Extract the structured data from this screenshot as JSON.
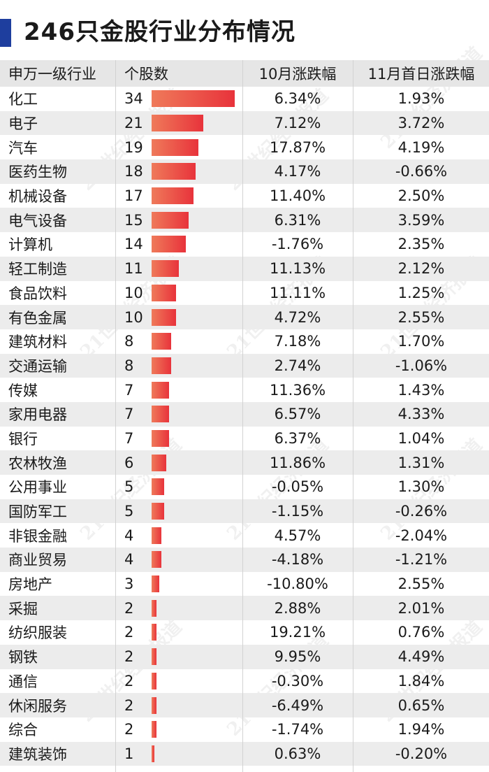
{
  "title": "246只金股行业分布情况",
  "watermark": "21世纪经济报道",
  "colors": {
    "accent": "#1e3e9e",
    "bar_start": "#ef7a5a",
    "bar_end": "#e8333b"
  },
  "chart_data": {
    "type": "table",
    "title": "246只金股行业分布情况",
    "columns": [
      "申万一级行业",
      "个股数",
      "10月涨跌幅",
      "11月首日涨跌幅"
    ],
    "rows": [
      {
        "industry": "化工",
        "count": 34,
        "oct": "6.34%",
        "nov": "1.93%"
      },
      {
        "industry": "电子",
        "count": 21,
        "oct": "7.12%",
        "nov": "3.72%"
      },
      {
        "industry": "汽车",
        "count": 19,
        "oct": "17.87%",
        "nov": "4.19%"
      },
      {
        "industry": "医药生物",
        "count": 18,
        "oct": "4.17%",
        "nov": "-0.66%"
      },
      {
        "industry": "机械设备",
        "count": 17,
        "oct": "11.40%",
        "nov": "2.50%"
      },
      {
        "industry": "电气设备",
        "count": 15,
        "oct": "6.31%",
        "nov": "3.59%"
      },
      {
        "industry": "计算机",
        "count": 14,
        "oct": "-1.76%",
        "nov": "2.35%"
      },
      {
        "industry": "轻工制造",
        "count": 11,
        "oct": "11.13%",
        "nov": "2.12%"
      },
      {
        "industry": "食品饮料",
        "count": 10,
        "oct": "11.11%",
        "nov": "1.25%"
      },
      {
        "industry": "有色金属",
        "count": 10,
        "oct": "4.72%",
        "nov": "2.55%"
      },
      {
        "industry": "建筑材料",
        "count": 8,
        "oct": "7.18%",
        "nov": "1.70%"
      },
      {
        "industry": "交通运输",
        "count": 8,
        "oct": "2.74%",
        "nov": "-1.06%"
      },
      {
        "industry": "传媒",
        "count": 7,
        "oct": "11.36%",
        "nov": "1.43%"
      },
      {
        "industry": "家用电器",
        "count": 7,
        "oct": "6.57%",
        "nov": "4.33%"
      },
      {
        "industry": "银行",
        "count": 7,
        "oct": "6.37%",
        "nov": "1.04%"
      },
      {
        "industry": "农林牧渔",
        "count": 6,
        "oct": "11.86%",
        "nov": "1.31%"
      },
      {
        "industry": "公用事业",
        "count": 5,
        "oct": "-0.05%",
        "nov": "1.30%"
      },
      {
        "industry": "国防军工",
        "count": 5,
        "oct": "-1.15%",
        "nov": "-0.26%"
      },
      {
        "industry": "非银金融",
        "count": 4,
        "oct": "4.57%",
        "nov": "-2.04%"
      },
      {
        "industry": "商业贸易",
        "count": 4,
        "oct": "-4.18%",
        "nov": "-1.21%"
      },
      {
        "industry": "房地产",
        "count": 3,
        "oct": "-10.80%",
        "nov": "2.55%"
      },
      {
        "industry": "采掘",
        "count": 2,
        "oct": "2.88%",
        "nov": "2.01%"
      },
      {
        "industry": "纺织服装",
        "count": 2,
        "oct": "19.21%",
        "nov": "0.76%"
      },
      {
        "industry": "钢铁",
        "count": 2,
        "oct": "9.95%",
        "nov": "4.49%"
      },
      {
        "industry": "通信",
        "count": 2,
        "oct": "-0.30%",
        "nov": "1.84%"
      },
      {
        "industry": "休闲服务",
        "count": 2,
        "oct": "-6.49%",
        "nov": "0.65%"
      },
      {
        "industry": "综合",
        "count": 2,
        "oct": "-1.74%",
        "nov": "1.94%"
      },
      {
        "industry": "建筑装饰",
        "count": 1,
        "oct": "0.63%",
        "nov": "-0.20%"
      }
    ]
  }
}
